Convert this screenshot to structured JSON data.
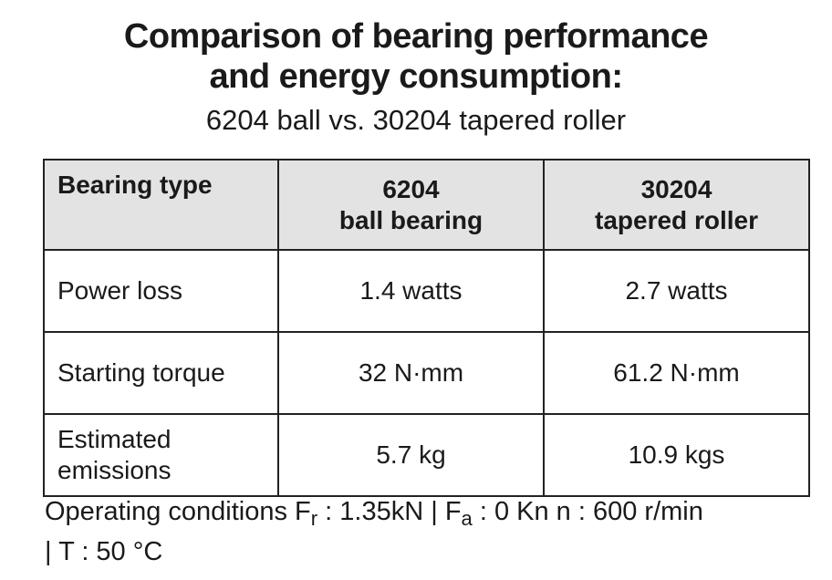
{
  "title": {
    "line1": "Comparison of bearing performance",
    "line2": "and energy consumption:",
    "subtitle": "6204 ball vs. 30204 tapered roller"
  },
  "table": {
    "header": {
      "col1": "Bearing type",
      "col2_line1": "6204",
      "col2_line2": "ball bearing",
      "col3_line1": "30204",
      "col3_line2": "tapered roller"
    },
    "rows": [
      {
        "label": "Power loss",
        "ball": "1.4 watts",
        "roller": "2.7 watts"
      },
      {
        "label": "Starting torque",
        "ball": "32 N·mm",
        "roller": "61.2 N·mm"
      },
      {
        "label_line1": "Estimated",
        "label_line2": "emissions",
        "ball": "5.7 kg",
        "roller": "10.9 kgs"
      }
    ]
  },
  "footnote": {
    "part1": "Operating conditions F",
    "sub_r": "r",
    "part2": " : 1.35kN  | F",
    "sub_a": "a",
    "part3": " : 0 Kn n : 600 r/min",
    "line2": "| T : 50 °C"
  }
}
